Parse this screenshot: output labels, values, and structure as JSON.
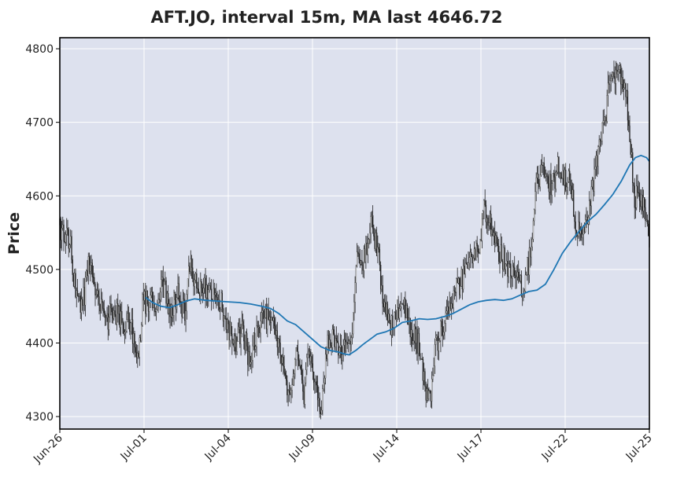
{
  "chart_data": {
    "type": "candlestick",
    "title": "AFT.JO, interval 15m, MA last 4646.72",
    "ylabel": "Price",
    "xlabel": "",
    "ylim": [
      4283,
      4815
    ],
    "y_ticks": [
      4300,
      4400,
      4500,
      4600,
      4700,
      4800
    ],
    "x_ticks": [
      {
        "label": "Jun-26",
        "t": 0
      },
      {
        "label": "Jul-01",
        "t": 3
      },
      {
        "label": "Jul-04",
        "t": 6
      },
      {
        "label": "Jul-09",
        "t": 9
      },
      {
        "label": "Jul-14",
        "t": 12
      },
      {
        "label": "Jul-17",
        "t": 15
      },
      {
        "label": "Jul-22",
        "t": 18
      },
      {
        "label": "Jul-25",
        "t": 21
      }
    ],
    "xlim": [
      0,
      21
    ],
    "grid": true,
    "colors": {
      "background": "#dde1ee",
      "grid": "#ffffff",
      "candle": "#222222",
      "ma_line": "#1f77b4",
      "frame": "#000000"
    },
    "price_path": [
      {
        "t": 0.0,
        "y": 4560
      },
      {
        "t": 0.15,
        "y": 4545
      },
      {
        "t": 0.35,
        "y": 4545
      },
      {
        "t": 0.55,
        "y": 4470
      },
      {
        "t": 0.8,
        "y": 4450
      },
      {
        "t": 1.05,
        "y": 4510
      },
      {
        "t": 1.3,
        "y": 4470
      },
      {
        "t": 1.6,
        "y": 4425
      },
      {
        "t": 1.9,
        "y": 4445
      },
      {
        "t": 2.2,
        "y": 4430
      },
      {
        "t": 2.55,
        "y": 4420
      },
      {
        "t": 2.8,
        "y": 4385
      },
      {
        "t": 2.95,
        "y": 4455
      },
      {
        "t": 3.2,
        "y": 4455
      },
      {
        "t": 3.45,
        "y": 4450
      },
      {
        "t": 3.7,
        "y": 4480
      },
      {
        "t": 3.95,
        "y": 4440
      },
      {
        "t": 4.2,
        "y": 4470
      },
      {
        "t": 4.45,
        "y": 4440
      },
      {
        "t": 4.65,
        "y": 4510
      },
      {
        "t": 4.9,
        "y": 4475
      },
      {
        "t": 5.15,
        "y": 4480
      },
      {
        "t": 5.45,
        "y": 4460
      },
      {
        "t": 5.75,
        "y": 4455
      },
      {
        "t": 6.0,
        "y": 4420
      },
      {
        "t": 6.25,
        "y": 4400
      },
      {
        "t": 6.5,
        "y": 4420
      },
      {
        "t": 6.75,
        "y": 4375
      },
      {
        "t": 7.0,
        "y": 4415
      },
      {
        "t": 7.25,
        "y": 4430
      },
      {
        "t": 7.5,
        "y": 4440
      },
      {
        "t": 7.7,
        "y": 4420
      },
      {
        "t": 7.95,
        "y": 4370
      },
      {
        "t": 8.2,
        "y": 4320
      },
      {
        "t": 8.45,
        "y": 4390
      },
      {
        "t": 8.7,
        "y": 4330
      },
      {
        "t": 8.85,
        "y": 4400
      },
      {
        "t": 9.1,
        "y": 4350
      },
      {
        "t": 9.3,
        "y": 4305
      },
      {
        "t": 9.5,
        "y": 4395
      },
      {
        "t": 9.75,
        "y": 4410
      },
      {
        "t": 10.0,
        "y": 4385
      },
      {
        "t": 10.2,
        "y": 4400
      },
      {
        "t": 10.4,
        "y": 4420
      },
      {
        "t": 10.6,
        "y": 4530
      },
      {
        "t": 10.85,
        "y": 4510
      },
      {
        "t": 11.1,
        "y": 4560
      },
      {
        "t": 11.35,
        "y": 4520
      },
      {
        "t": 11.5,
        "y": 4460
      },
      {
        "t": 11.75,
        "y": 4425
      },
      {
        "t": 12.0,
        "y": 4440
      },
      {
        "t": 12.25,
        "y": 4460
      },
      {
        "t": 12.5,
        "y": 4415
      },
      {
        "t": 12.75,
        "y": 4400
      },
      {
        "t": 13.0,
        "y": 4340
      },
      {
        "t": 13.2,
        "y": 4320
      },
      {
        "t": 13.4,
        "y": 4400
      },
      {
        "t": 13.65,
        "y": 4420
      },
      {
        "t": 13.9,
        "y": 4450
      },
      {
        "t": 14.15,
        "y": 4475
      },
      {
        "t": 14.4,
        "y": 4490
      },
      {
        "t": 14.65,
        "y": 4515
      },
      {
        "t": 14.9,
        "y": 4525
      },
      {
        "t": 15.1,
        "y": 4580
      },
      {
        "t": 15.4,
        "y": 4560
      },
      {
        "t": 15.65,
        "y": 4525
      },
      {
        "t": 15.95,
        "y": 4505
      },
      {
        "t": 16.2,
        "y": 4500
      },
      {
        "t": 16.45,
        "y": 4470
      },
      {
        "t": 16.75,
        "y": 4520
      },
      {
        "t": 16.95,
        "y": 4615
      },
      {
        "t": 17.2,
        "y": 4630
      },
      {
        "t": 17.5,
        "y": 4610
      },
      {
        "t": 17.75,
        "y": 4640
      },
      {
        "t": 18.0,
        "y": 4620
      },
      {
        "t": 18.2,
        "y": 4615
      },
      {
        "t": 18.4,
        "y": 4560
      },
      {
        "t": 18.65,
        "y": 4560
      },
      {
        "t": 18.85,
        "y": 4580
      },
      {
        "t": 19.1,
        "y": 4650
      },
      {
        "t": 19.4,
        "y": 4700
      },
      {
        "t": 19.6,
        "y": 4760
      },
      {
        "t": 19.85,
        "y": 4770
      },
      {
        "t": 20.1,
        "y": 4760
      },
      {
        "t": 20.3,
        "y": 4690
      },
      {
        "t": 20.45,
        "y": 4600
      },
      {
        "t": 20.7,
        "y": 4600
      },
      {
        "t": 20.9,
        "y": 4560
      },
      {
        "t": 21.0,
        "y": 4540
      }
    ],
    "ma_series": [
      {
        "t": 3.05,
        "y": 4462
      },
      {
        "t": 3.3,
        "y": 4455
      },
      {
        "t": 3.6,
        "y": 4450
      },
      {
        "t": 3.9,
        "y": 4448
      },
      {
        "t": 4.2,
        "y": 4452
      },
      {
        "t": 4.5,
        "y": 4457
      },
      {
        "t": 4.8,
        "y": 4460
      },
      {
        "t": 5.2,
        "y": 4458
      },
      {
        "t": 5.6,
        "y": 4457
      },
      {
        "t": 6.0,
        "y": 4456
      },
      {
        "t": 6.4,
        "y": 4455
      },
      {
        "t": 6.8,
        "y": 4453
      },
      {
        "t": 7.2,
        "y": 4450
      },
      {
        "t": 7.5,
        "y": 4447
      },
      {
        "t": 7.8,
        "y": 4440
      },
      {
        "t": 8.1,
        "y": 4430
      },
      {
        "t": 8.4,
        "y": 4425
      },
      {
        "t": 8.7,
        "y": 4415
      },
      {
        "t": 9.0,
        "y": 4405
      },
      {
        "t": 9.3,
        "y": 4395
      },
      {
        "t": 9.6,
        "y": 4390
      },
      {
        "t": 9.9,
        "y": 4388
      },
      {
        "t": 10.15,
        "y": 4385
      },
      {
        "t": 10.3,
        "y": 4384
      },
      {
        "t": 10.55,
        "y": 4390
      },
      {
        "t": 10.8,
        "y": 4398
      },
      {
        "t": 11.05,
        "y": 4405
      },
      {
        "t": 11.3,
        "y": 4412
      },
      {
        "t": 11.6,
        "y": 4415
      },
      {
        "t": 11.9,
        "y": 4420
      },
      {
        "t": 12.2,
        "y": 4428
      },
      {
        "t": 12.5,
        "y": 4430
      },
      {
        "t": 12.8,
        "y": 4433
      },
      {
        "t": 13.1,
        "y": 4432
      },
      {
        "t": 13.4,
        "y": 4433
      },
      {
        "t": 13.7,
        "y": 4436
      },
      {
        "t": 14.0,
        "y": 4440
      },
      {
        "t": 14.3,
        "y": 4446
      },
      {
        "t": 14.6,
        "y": 4452
      },
      {
        "t": 14.9,
        "y": 4456
      },
      {
        "t": 15.2,
        "y": 4458
      },
      {
        "t": 15.5,
        "y": 4459
      },
      {
        "t": 15.8,
        "y": 4458
      },
      {
        "t": 16.1,
        "y": 4460
      },
      {
        "t": 16.4,
        "y": 4465
      },
      {
        "t": 16.7,
        "y": 4470
      },
      {
        "t": 17.0,
        "y": 4472
      },
      {
        "t": 17.3,
        "y": 4480
      },
      {
        "t": 17.6,
        "y": 4500
      },
      {
        "t": 17.9,
        "y": 4522
      },
      {
        "t": 18.2,
        "y": 4538
      },
      {
        "t": 18.5,
        "y": 4552
      },
      {
        "t": 18.8,
        "y": 4565
      },
      {
        "t": 19.1,
        "y": 4575
      },
      {
        "t": 19.4,
        "y": 4588
      },
      {
        "t": 19.7,
        "y": 4602
      },
      {
        "t": 20.0,
        "y": 4620
      },
      {
        "t": 20.3,
        "y": 4642
      },
      {
        "t": 20.5,
        "y": 4652
      },
      {
        "t": 20.7,
        "y": 4655
      },
      {
        "t": 20.9,
        "y": 4652
      },
      {
        "t": 21.0,
        "y": 4647
      }
    ]
  }
}
